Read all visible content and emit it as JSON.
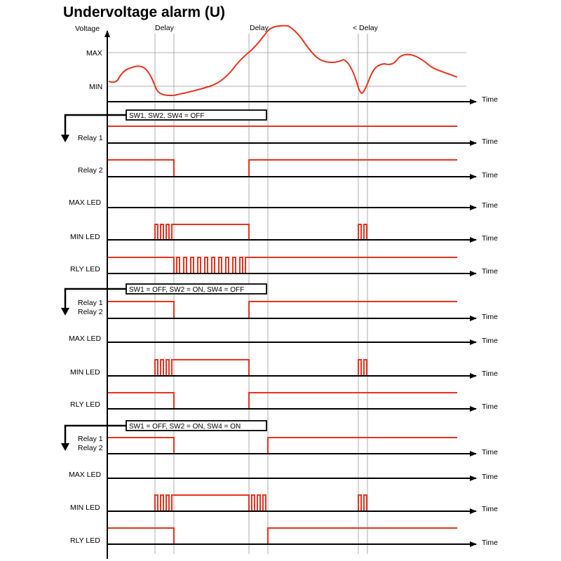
{
  "title": "Undervoltage alarm (U)",
  "colors": {
    "signal": "#e8321e",
    "axis": "#000000",
    "grid": "#9a9a9a"
  },
  "voltage_panel": {
    "y_label": "Voltage",
    "max_label": "MAX",
    "min_label": "MIN",
    "time_label": "Time",
    "delay_labels": [
      "Delay",
      "Delay",
      "< Delay"
    ]
  },
  "sections": [
    {
      "config": "SW1, SW2, SW4 = OFF",
      "traces": [
        {
          "label": "Relay 1",
          "time": "Time"
        },
        {
          "label": "Relay 2",
          "time": "Time"
        },
        {
          "label": "MAX  LED",
          "time": "Time"
        },
        {
          "label": "MIN  LED",
          "time": "Time"
        },
        {
          "label": "RLY  LED",
          "time": "Time"
        }
      ]
    },
    {
      "config": "SW1 = OFF, SW2 = ON, SW4 = OFF",
      "traces": [
        {
          "label": "Relay 1",
          "label2": "Relay 2",
          "time": "Time"
        },
        {
          "label": "MAX  LED",
          "time": "Time"
        },
        {
          "label": "MIN  LED",
          "time": "Time"
        },
        {
          "label": "RLY  LED",
          "time": "Time"
        }
      ]
    },
    {
      "config": "SW1 = OFF, SW2 = ON, SW4 = ON",
      "traces": [
        {
          "label": "Relay 1",
          "label2": "Relay 2",
          "time": "Time"
        },
        {
          "label": "MAX  LED",
          "time": "Time"
        },
        {
          "label": "MIN  LED",
          "time": "Time"
        },
        {
          "label": "RLY  LED",
          "time": "Time"
        }
      ]
    }
  ]
}
